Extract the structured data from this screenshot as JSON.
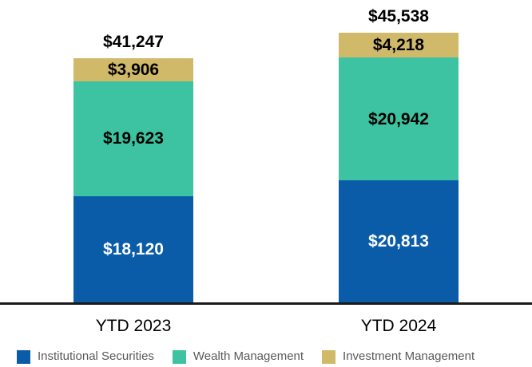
{
  "chart_data": {
    "type": "bar",
    "subtype": "stacked-vertical",
    "title": "",
    "categories": [
      "YTD 2023",
      "YTD 2024"
    ],
    "series": [
      {
        "name": "Institutional Securities",
        "color": "#0A5CA8",
        "label_color": "#FFFFFF",
        "values": [
          18120,
          20813
        ],
        "value_labels": [
          "$18,120",
          "$20,813"
        ]
      },
      {
        "name": "Wealth Management",
        "color": "#3DC3A1",
        "label_color": "#000000",
        "values": [
          19623,
          20942
        ],
        "value_labels": [
          "$19,623",
          "$20,942"
        ]
      },
      {
        "name": "Investment Management",
        "color": "#D1B96A",
        "label_color": "#000000",
        "values": [
          3906,
          4218
        ],
        "value_labels": [
          "$3,906",
          "$4,218"
        ]
      }
    ],
    "stack_order_bottom_to_top": [
      "Institutional Securities",
      "Wealth Management",
      "Investment Management"
    ],
    "totals": [
      41247,
      45538
    ],
    "total_labels": [
      "$41,247",
      "$45,538"
    ],
    "xlabel": "",
    "ylabel": "",
    "y_axis_visible": false,
    "gridlines": false,
    "legend_position": "bottom",
    "colors": {
      "background": "#FFFFFF",
      "axis_line": "#1A1A1A",
      "total_label_text": "#000000",
      "category_label_text": "#000000",
      "legend_text": "#595959"
    }
  }
}
